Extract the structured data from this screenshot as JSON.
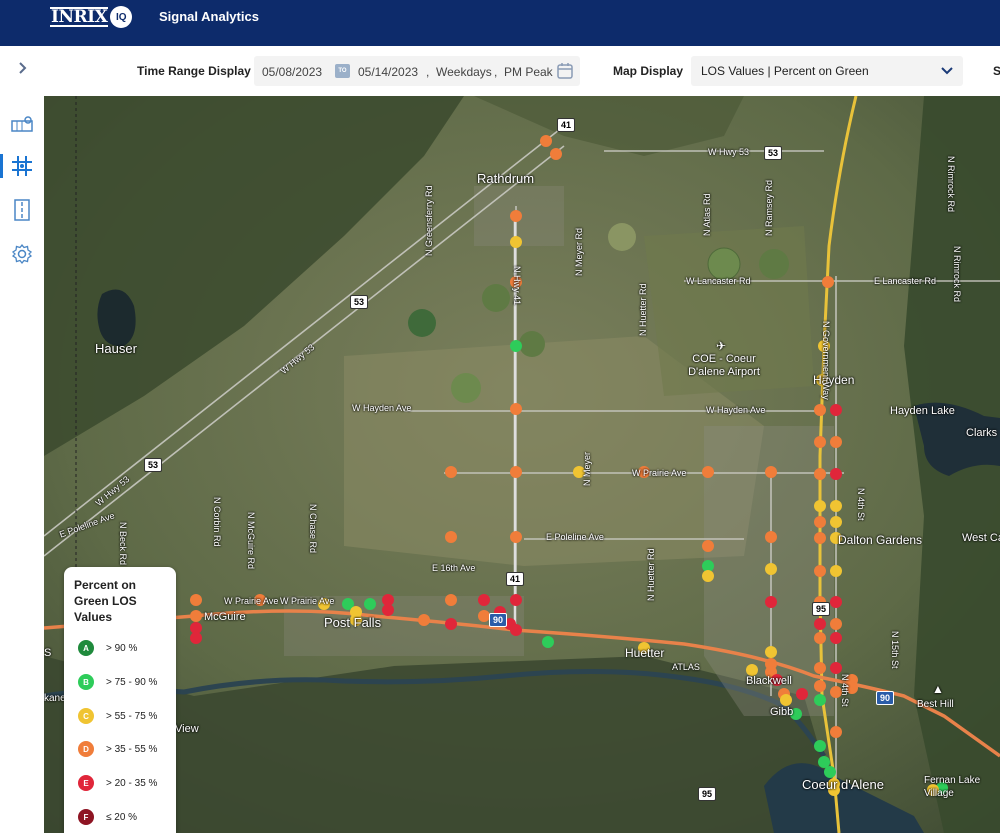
{
  "header": {
    "logo_text": "INRIX",
    "logo_badge": "IQ",
    "app_title": "Signal Analytics"
  },
  "filters": {
    "time_range_label": "Time Range Display",
    "start_date": "05/08/2023",
    "to_badge": "TO",
    "end_date": "05/14/2023",
    "day_type": "Weekdays",
    "period": "PM Peak",
    "map_display_label": "Map Display",
    "map_display_value": "LOS Values | Percent on Green",
    "cut_label": "S"
  },
  "sidebar": {
    "items": [
      "corridor-icon",
      "signal-icon",
      "road-icon",
      "settings-icon"
    ],
    "active": "signal-icon"
  },
  "map": {
    "places": [
      "Rathdrum",
      "Hauser",
      "COE - Coeur D'alene Airport",
      "Hayden",
      "Hayden Lake",
      "Clarks",
      "Dalton Gardens",
      "West Ca",
      "Post Falls",
      "McGuire",
      "Huetter",
      "ATLAS",
      "Blackwell",
      "Gibb",
      "Coeur d'Alene",
      "Fernan Lake Village",
      "Best Hill",
      "View",
      "S",
      "kane"
    ],
    "streets": [
      "W Hwy 53",
      "W Hwy 53",
      "W Hwy 53",
      "W Lancaster Rd",
      "E Lancaster Rd",
      "W Hayden Ave",
      "W Hayden Ave",
      "W Prairie Ave",
      "E Poleline Ave",
      "E 16th Ave",
      "W Prairie Ave",
      "N Greensferry Rd",
      "N Meyer Rd",
      "N Huetter Rd",
      "N Atlas Rd",
      "N Ramsey Rd",
      "N Government Way",
      "N Rimrock Rd",
      "N Rimrock Rd",
      "N Chase Rd",
      "N McGuire Rd",
      "N Corbin Rd",
      "N Beck Rd",
      "N Meyer",
      "N Huetter Rd",
      "N 4th St",
      "N 15th St",
      "N 4th St",
      "N Hwy 41",
      "E Poleline Ave",
      "W Prairie Ave"
    ],
    "route_shields": [
      "41",
      "53",
      "53",
      "53",
      "41",
      "90",
      "95",
      "90",
      "95"
    ]
  },
  "legend": {
    "title": "Percent on Green LOS Values",
    "items": [
      {
        "grade": "A",
        "label": "> 90 %",
        "color": "#1f8a3c"
      },
      {
        "grade": "B",
        "label": "> 75 - 90 %",
        "color": "#2ecc5a"
      },
      {
        "grade": "C",
        "label": "> 55 - 75 %",
        "color": "#f0c432"
      },
      {
        "grade": "D",
        "label": "> 35 - 55 %",
        "color": "#f07d3a"
      },
      {
        "grade": "E",
        "label": "> 20 - 35 %",
        "color": "#e0263a"
      },
      {
        "grade": "F",
        "label": "≤ 20 %",
        "color": "#8e1423"
      }
    ]
  }
}
